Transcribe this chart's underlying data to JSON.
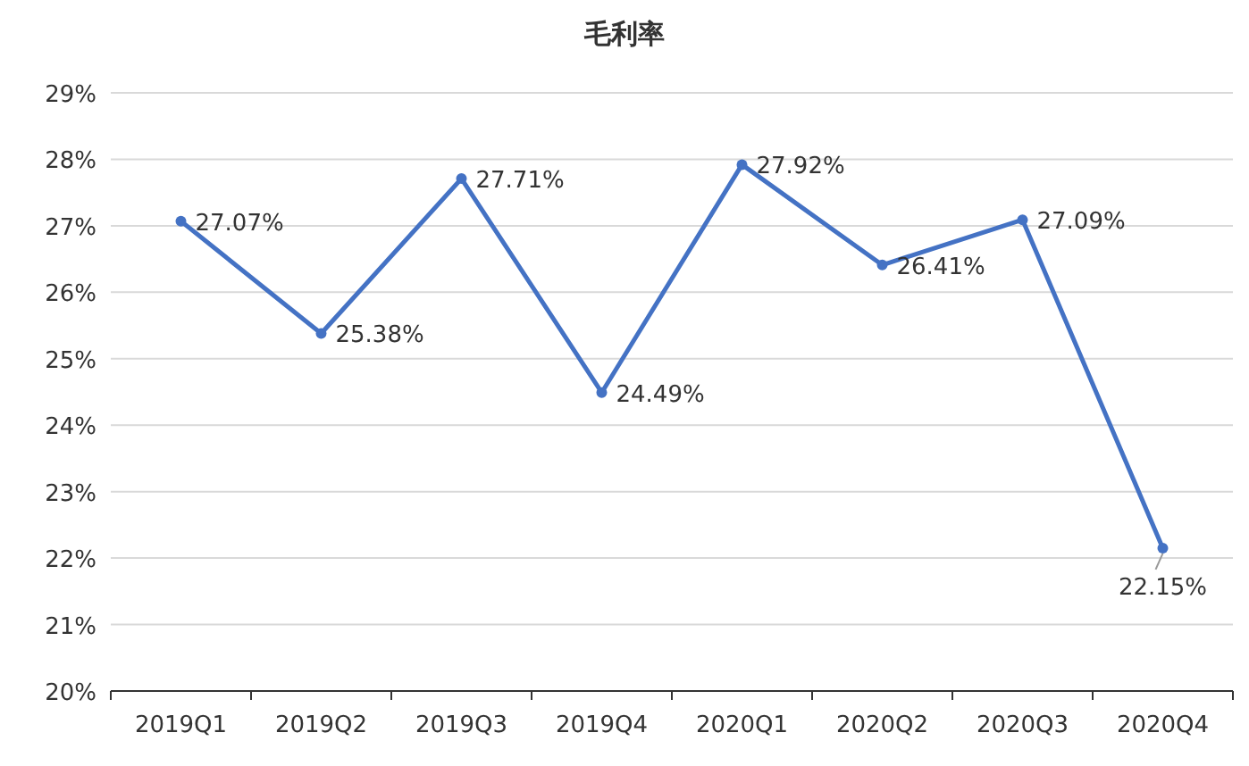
{
  "chart_data": {
    "type": "line",
    "title": "毛利率",
    "categories": [
      "2019Q1",
      "2019Q2",
      "2019Q3",
      "2019Q4",
      "2020Q1",
      "2020Q2",
      "2020Q3",
      "2020Q4"
    ],
    "series": [
      {
        "color": "#4472c4",
        "values": [
          27.07,
          25.38,
          27.71,
          24.49,
          27.92,
          26.41,
          27.09,
          22.15
        ],
        "value_labels": [
          "27.07%",
          "25.38%",
          "27.71%",
          "24.49%",
          "27.92%",
          "26.41%",
          "27.09%",
          "22.15%"
        ]
      }
    ],
    "ylim": [
      20,
      29
    ],
    "yticks": [
      {
        "value": 20,
        "label": "20%"
      },
      {
        "value": 21,
        "label": "21%"
      },
      {
        "value": 22,
        "label": "22%"
      },
      {
        "value": 23,
        "label": "23%"
      },
      {
        "value": 24,
        "label": "24%"
      },
      {
        "value": 25,
        "label": "25%"
      },
      {
        "value": 26,
        "label": "26%"
      },
      {
        "value": 27,
        "label": "27%"
      },
      {
        "value": 28,
        "label": "28%"
      },
      {
        "value": 29,
        "label": "29%"
      }
    ],
    "grid": "y",
    "marker": "circle",
    "line_style": "solid"
  }
}
